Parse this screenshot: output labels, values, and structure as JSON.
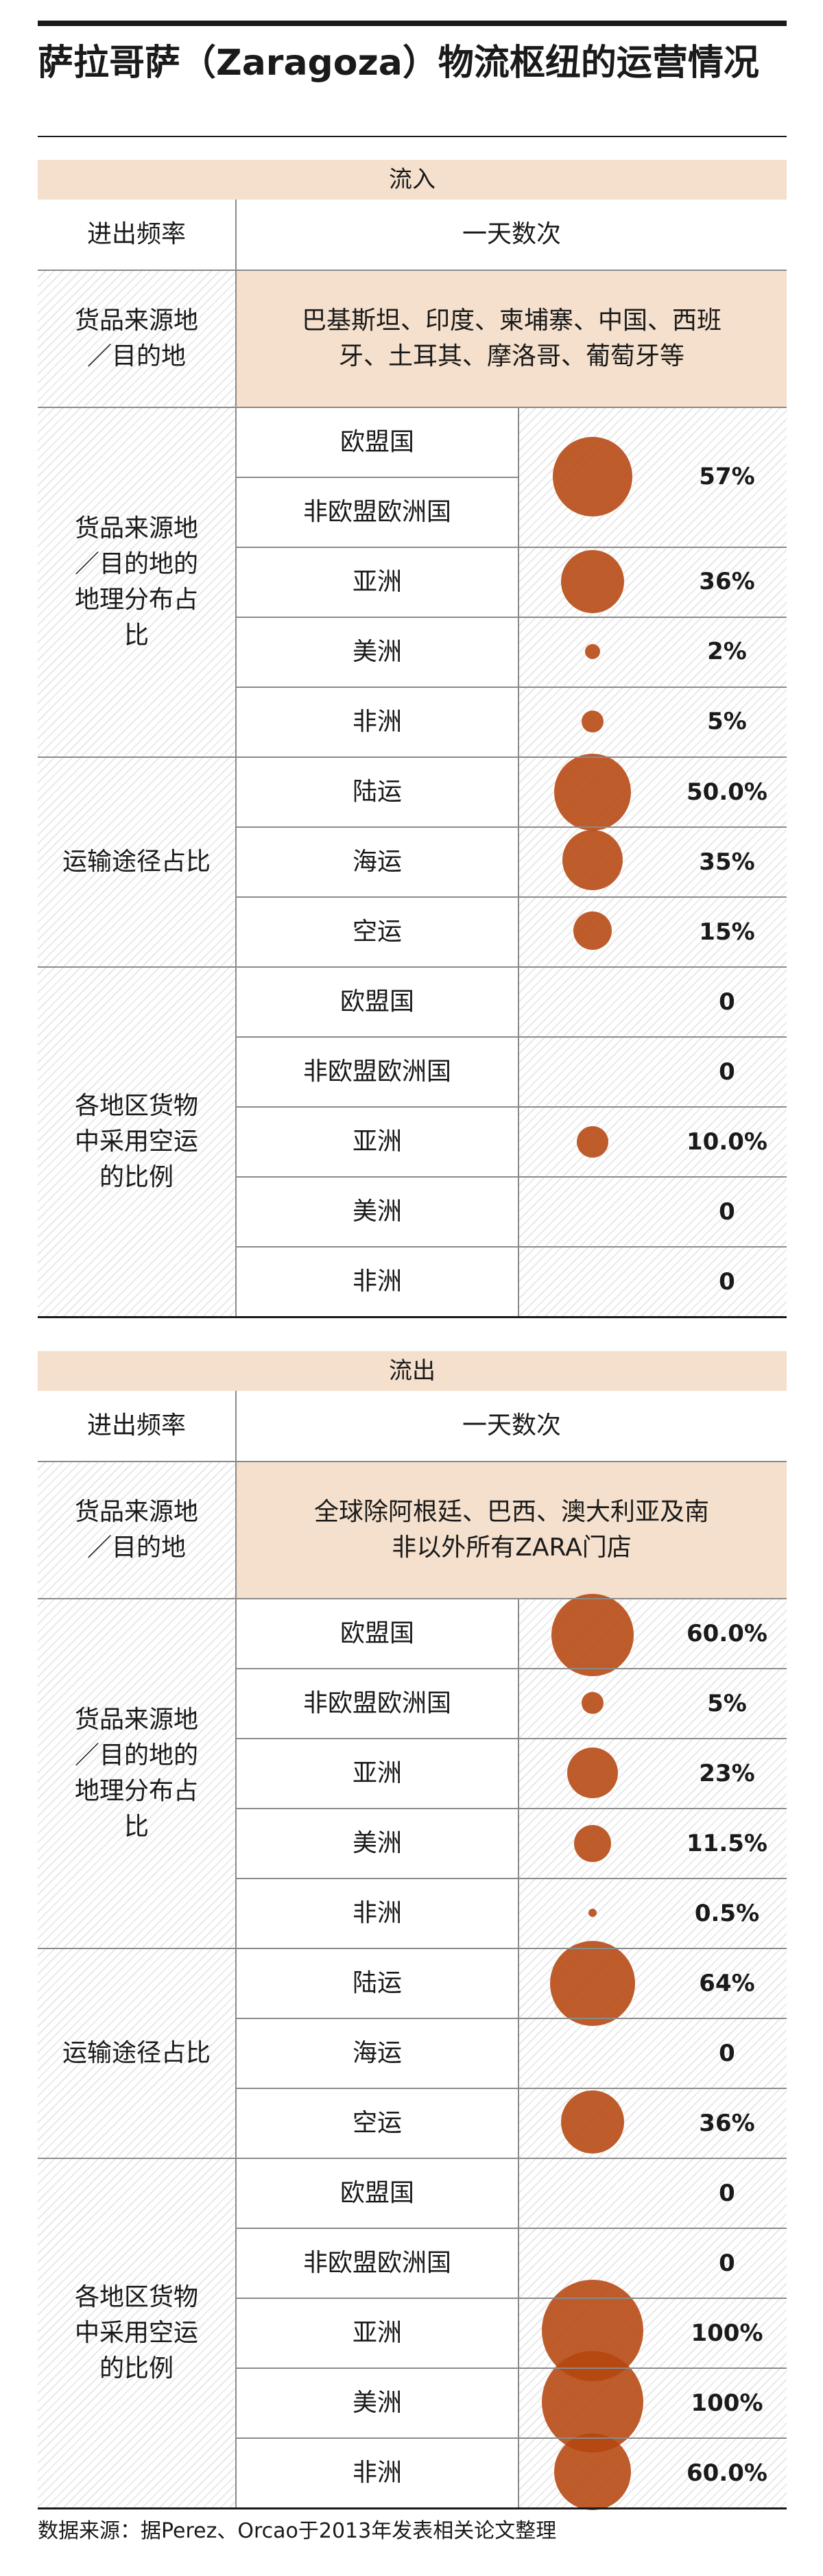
{
  "title": "萨拉哥萨（Zaragoza）物流枢纽的运营情况",
  "colors": {
    "header_bg": "#f4e0cc",
    "bubble": "#b5450f",
    "rule": "#1a1a1a"
  },
  "inflow": {
    "header": "流入",
    "frequency_label": "进出频率",
    "frequency_value": "一天数次",
    "origin_label": "货品来源地／目的地",
    "origin_value": "巴基斯坦、印度、柬埔寨、中国、西班牙、土耳其、摩洛哥、葡萄牙等",
    "distribution_label": "货品来源地／目的地的地理分布占比",
    "distribution": [
      {
        "region": "欧盟国",
        "pct": "57%",
        "value": 57
      },
      {
        "region": "非欧盟欧洲国",
        "pct": "",
        "value": 0
      },
      {
        "region": "亚洲",
        "pct": "36%",
        "value": 36
      },
      {
        "region": "美洲",
        "pct": "2%",
        "value": 2
      },
      {
        "region": "非洲",
        "pct": "5%",
        "value": 5
      }
    ],
    "transport_label": "运输途径占比",
    "transport": [
      {
        "mode": "陆运",
        "pct": "50.0%",
        "value": 50
      },
      {
        "mode": "海运",
        "pct": "35%",
        "value": 35
      },
      {
        "mode": "空运",
        "pct": "15%",
        "value": 15
      }
    ],
    "air_label": "各地区货物中采用空运的比例",
    "air": [
      {
        "region": "欧盟国",
        "pct": "0",
        "value": 0
      },
      {
        "region": "非欧盟欧洲国",
        "pct": "0",
        "value": 0
      },
      {
        "region": "亚洲",
        "pct": "10.0%",
        "value": 10
      },
      {
        "region": "美洲",
        "pct": "0",
        "value": 0
      },
      {
        "region": "非洲",
        "pct": "0",
        "value": 0
      }
    ]
  },
  "outflow": {
    "header": "流出",
    "frequency_label": "进出频率",
    "frequency_value": "一天数次",
    "origin_label": "货品来源地／目的地",
    "origin_value": "全球除阿根廷、巴西、澳大利亚及南非以外所有ZARA门店",
    "distribution_label": "货品来源地／目的地的地理分布占比",
    "distribution": [
      {
        "region": "欧盟国",
        "pct": "60.0%",
        "value": 60
      },
      {
        "region": "非欧盟欧洲国",
        "pct": "5%",
        "value": 5
      },
      {
        "region": "亚洲",
        "pct": "23%",
        "value": 23
      },
      {
        "region": "美洲",
        "pct": "11.5%",
        "value": 11.5
      },
      {
        "region": "非洲",
        "pct": "0.5%",
        "value": 0.5
      }
    ],
    "transport_label": "运输途径占比",
    "transport": [
      {
        "mode": "陆运",
        "pct": "64%",
        "value": 64
      },
      {
        "mode": "海运",
        "pct": "0",
        "value": 0
      },
      {
        "mode": "空运",
        "pct": "36%",
        "value": 36
      }
    ],
    "air_label": "各地区货物中采用空运的比例",
    "air": [
      {
        "region": "欧盟国",
        "pct": "0",
        "value": 0
      },
      {
        "region": "非欧盟欧洲国",
        "pct": "0",
        "value": 0
      },
      {
        "region": "亚洲",
        "pct": "100%",
        "value": 100
      },
      {
        "region": "美洲",
        "pct": "100%",
        "value": 100
      },
      {
        "region": "非洲",
        "pct": "60.0%",
        "value": 60
      }
    ]
  },
  "source": "数据来源：据Perez、Orcao于2013年发表相关论文整理"
}
